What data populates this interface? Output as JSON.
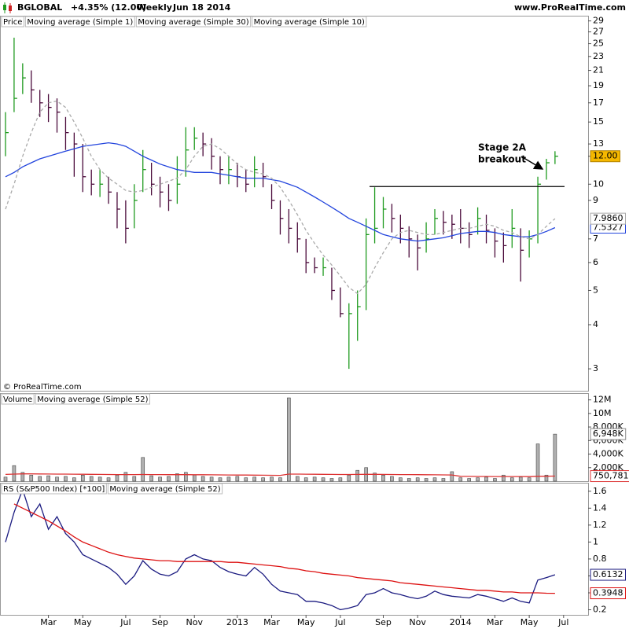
{
  "header": {
    "symbol": "BGLOBAL",
    "change": "+4.35% (12.00)",
    "period": "Weekly",
    "date": "Jun 18 2014",
    "site": "www.ProRealTime.com",
    "copyright": "© ProRealTime.com"
  },
  "chart_data": [
    {
      "type": "ohlc",
      "log_scale": true,
      "ylim": [
        2.6,
        30
      ],
      "yticks": [
        3,
        4,
        5,
        6,
        7,
        9,
        10,
        12,
        13,
        15,
        17,
        19,
        21,
        23,
        25,
        27,
        29
      ],
      "legend": [
        {
          "name": "Price",
          "color": "#000000"
        },
        {
          "name": "Moving average (Simple 1)",
          "color": "#1a1a80"
        }
      ],
      "bars": {
        "up_color": "#1f9a1f",
        "down_color": "#4a0a3a",
        "label_color": "#f5b800",
        "last_value_label": "12.00",
        "high": [
          16,
          26,
          22,
          21,
          18.5,
          18,
          17.5,
          15.5,
          14,
          13,
          11,
          11,
          10.5,
          9.5,
          9,
          10,
          12.5,
          11.5,
          10.5,
          10,
          12,
          14.5,
          14.5,
          14,
          13.5,
          12,
          12,
          11.5,
          11,
          12,
          11.5,
          10,
          9,
          8.5,
          7.8,
          7,
          6.2,
          6.2,
          5.8,
          5.1,
          4.6,
          5,
          8,
          9.8,
          9.2,
          8.8,
          8.2,
          7.6,
          7.2,
          7.8,
          8.5,
          8.4,
          8.2,
          8.5,
          7.8,
          8.6,
          8.2,
          7.5,
          7.3,
          8.5,
          7.5,
          7.4,
          10.5,
          11.8,
          12.4,
          null
        ],
        "low": [
          12,
          16,
          18,
          17,
          15.5,
          15,
          14,
          12.5,
          10.5,
          9.5,
          9.3,
          9.2,
          8.8,
          7.5,
          6.8,
          7.5,
          9.5,
          9.3,
          8.6,
          8.4,
          8.8,
          10.5,
          12.5,
          12,
          11,
          10,
          10,
          9.8,
          9.5,
          9.8,
          9.8,
          8.5,
          7.2,
          6.8,
          6.4,
          5.6,
          5.6,
          5.5,
          4.7,
          4.2,
          3,
          3.6,
          4.4,
          6.8,
          7.5,
          7.3,
          6.8,
          6.2,
          5.7,
          6.4,
          7.2,
          7.2,
          7,
          6.8,
          6.6,
          7.2,
          6.8,
          6.2,
          6,
          6.6,
          5.3,
          6.2,
          6.8,
          10.3,
          11.4,
          null
        ],
        "close": [
          14,
          17.5,
          20,
          18.5,
          17,
          16.5,
          16,
          14,
          13,
          10.5,
          10,
          10,
          9.5,
          8.5,
          7.5,
          9,
          11,
          10,
          9.5,
          9,
          10,
          12.5,
          13.5,
          13,
          12,
          11,
          11,
          10.5,
          10,
          11,
          10.5,
          9,
          8,
          7.5,
          7,
          6,
          5.8,
          5.8,
          5,
          4.3,
          4.3,
          4.5,
          7.2,
          7.5,
          8.5,
          8,
          7.5,
          7,
          6.6,
          7,
          8,
          7.8,
          7.7,
          7.5,
          7.2,
          8,
          7.4,
          6.9,
          6.7,
          7.5,
          6.5,
          7,
          10,
          11.5,
          12,
          null
        ]
      },
      "series": [
        {
          "name": "Moving average (Simple 30)",
          "color": "#2244dd",
          "last_value_label": "7.5327",
          "values": [
            10.5,
            10.8,
            11.2,
            11.5,
            11.8,
            12,
            12.2,
            12.4,
            12.6,
            12.8,
            12.9,
            13,
            13.1,
            13,
            12.8,
            12.4,
            12,
            11.7,
            11.4,
            11.2,
            11,
            10.9,
            10.8,
            10.8,
            10.8,
            10.7,
            10.6,
            10.5,
            10.4,
            10.4,
            10.4,
            10.3,
            10.2,
            10,
            9.8,
            9.5,
            9.2,
            8.9,
            8.6,
            8.3,
            8,
            7.8,
            7.6,
            7.4,
            7.2,
            7.1,
            7,
            6.95,
            6.9,
            6.95,
            7,
            7.05,
            7.15,
            7.25,
            7.3,
            7.35,
            7.35,
            7.3,
            7.2,
            7.15,
            7.1,
            7.1,
            7.2,
            7.35,
            7.5327,
            null
          ]
        },
        {
          "name": "Moving average (Simple 10)",
          "color": "#aaaaaa",
          "dashed": true,
          "last_value_label": "7.9860",
          "values": [
            8.5,
            10,
            12,
            14,
            16,
            17,
            17.2,
            16.5,
            15,
            13.5,
            12,
            11,
            10.4,
            10,
            9.6,
            9.5,
            9.6,
            9.8,
            10,
            10.2,
            10.4,
            11,
            12,
            12.8,
            13,
            12.6,
            12,
            11.4,
            11,
            10.8,
            10.7,
            10.4,
            9.8,
            9,
            8.2,
            7.4,
            6.8,
            6.3,
            5.9,
            5.5,
            5.1,
            4.9,
            5.2,
            5.8,
            6.4,
            7,
            7.3,
            7.4,
            7.3,
            7.2,
            7.2,
            7.3,
            7.4,
            7.5,
            7.5,
            7.6,
            7.7,
            7.6,
            7.4,
            7.3,
            7.1,
            7,
            7.2,
            7.6,
            7.986,
            null
          ]
        }
      ],
      "reference_line": 9.85,
      "annotation": [
        "Stage 2A",
        "breakout"
      ]
    },
    {
      "type": "bar",
      "ylim": [
        0,
        13000000
      ],
      "yticks": [
        {
          "value": 2000000,
          "label": "2,000K"
        },
        {
          "value": 4000000,
          "label": "4,000K"
        },
        {
          "value": 6000000,
          "label": "6,000K"
        },
        {
          "value": 8000000,
          "label": "8,000K"
        },
        {
          "value": 10000000,
          "label": "10M"
        },
        {
          "value": 12000000,
          "label": "12M"
        }
      ],
      "legend": [
        {
          "name": "Volume",
          "color": "#999999"
        }
      ],
      "color": "#b0b0b0",
      "last_value_label": "6,948K",
      "values": [
        600000,
        2300000,
        1300000,
        900000,
        700000,
        800000,
        600000,
        700000,
        500000,
        900000,
        700000,
        600000,
        500000,
        900000,
        1300000,
        700000,
        3500000,
        800000,
        600000,
        700000,
        1100000,
        1300000,
        900000,
        700000,
        600000,
        500000,
        600000,
        700000,
        500000,
        600000,
        500000,
        600000,
        500000,
        12300000,
        700000,
        500000,
        600000,
        500000,
        400000,
        500000,
        900000,
        1600000,
        2000000,
        1200000,
        900000,
        700000,
        500000,
        400000,
        500000,
        400000,
        500000,
        400000,
        1400000,
        500000,
        400000,
        500000,
        600000,
        400000,
        900000,
        500000,
        600000,
        500000,
        5500000,
        900000,
        6948000,
        null
      ],
      "series": [
        {
          "name": "Moving average (Simple 52)",
          "color": "#dd3333",
          "last_value_label": "750,781",
          "values": [
            1000000,
            1050000,
            1080000,
            1080000,
            1070000,
            1060000,
            1050000,
            1040000,
            1030000,
            1020000,
            1010000,
            1000000,
            990000,
            980000,
            980000,
            970000,
            990000,
            980000,
            970000,
            960000,
            960000,
            960000,
            950000,
            950000,
            940000,
            930000,
            920000,
            910000,
            900000,
            890000,
            880000,
            870000,
            860000,
            1050000,
            1040000,
            1030000,
            1020000,
            1010000,
            1000000,
            990000,
            990000,
            1000000,
            1010000,
            1010000,
            1000000,
            990000,
            980000,
            970000,
            960000,
            950000,
            940000,
            930000,
            920000,
            720000,
            710000,
            700000,
            700000,
            690000,
            690000,
            680000,
            680000,
            670000,
            720000,
            730000,
            750781,
            null
          ]
        }
      ]
    },
    {
      "type": "line",
      "ylim": [
        0.14,
        1.7
      ],
      "yticks": [
        0.2,
        0.4,
        0.6,
        0.8,
        1,
        1.2,
        1.4,
        1.6
      ],
      "categories": [
        null,
        null,
        null,
        null,
        null,
        "Mar",
        null,
        null,
        null,
        "May",
        null,
        null,
        null,
        null,
        "Jul",
        null,
        null,
        null,
        "Sep",
        null,
        null,
        null,
        "Nov",
        null,
        null,
        null,
        null,
        "2013",
        null,
        null,
        null,
        "Mar",
        null,
        null,
        null,
        "May",
        null,
        null,
        null,
        "Jul",
        null,
        null,
        null,
        null,
        "Sep",
        null,
        null,
        null,
        "Nov",
        null,
        null,
        null,
        null,
        "2014",
        null,
        null,
        null,
        "Mar",
        null,
        null,
        null,
        "May",
        null,
        null,
        null,
        "Jul"
      ],
      "series": [
        {
          "name": "RS (S&P500 Index) [*100]",
          "color": "#1a1a80",
          "last_value_label": "0.6132",
          "values": [
            1.0,
            1.35,
            1.62,
            1.3,
            1.45,
            1.15,
            1.3,
            1.1,
            1.0,
            0.85,
            0.8,
            0.75,
            0.7,
            0.62,
            0.5,
            0.6,
            0.78,
            0.68,
            0.62,
            0.6,
            0.65,
            0.8,
            0.85,
            0.8,
            0.78,
            0.7,
            0.65,
            0.62,
            0.6,
            0.7,
            0.62,
            0.5,
            0.42,
            0.4,
            0.38,
            0.3,
            0.3,
            0.28,
            0.25,
            0.2,
            0.22,
            0.25,
            0.38,
            0.4,
            0.45,
            0.4,
            0.38,
            0.35,
            0.33,
            0.36,
            0.42,
            0.38,
            0.36,
            0.35,
            0.34,
            0.38,
            0.36,
            0.33,
            0.3,
            0.34,
            0.3,
            0.28,
            0.55,
            0.58,
            0.6132,
            null
          ]
        },
        {
          "name": "Moving average (Simple 52)",
          "color": "#dd1111",
          "last_value_label": "0.3948",
          "values": [
            null,
            1.45,
            1.4,
            1.35,
            1.3,
            1.25,
            1.19,
            1.13,
            1.06,
            1.0,
            0.96,
            0.92,
            0.88,
            0.85,
            0.83,
            0.81,
            0.8,
            0.79,
            0.78,
            0.78,
            0.77,
            0.77,
            0.77,
            0.77,
            0.77,
            0.77,
            0.76,
            0.76,
            0.75,
            0.74,
            0.73,
            0.72,
            0.71,
            0.69,
            0.68,
            0.66,
            0.65,
            0.63,
            0.62,
            0.61,
            0.6,
            0.58,
            0.57,
            0.56,
            0.55,
            0.54,
            0.52,
            0.51,
            0.5,
            0.49,
            0.48,
            0.47,
            0.46,
            0.45,
            0.44,
            0.43,
            0.43,
            0.42,
            0.41,
            0.41,
            0.4,
            0.4,
            0.4,
            0.395,
            0.3948,
            null
          ]
        }
      ]
    }
  ]
}
